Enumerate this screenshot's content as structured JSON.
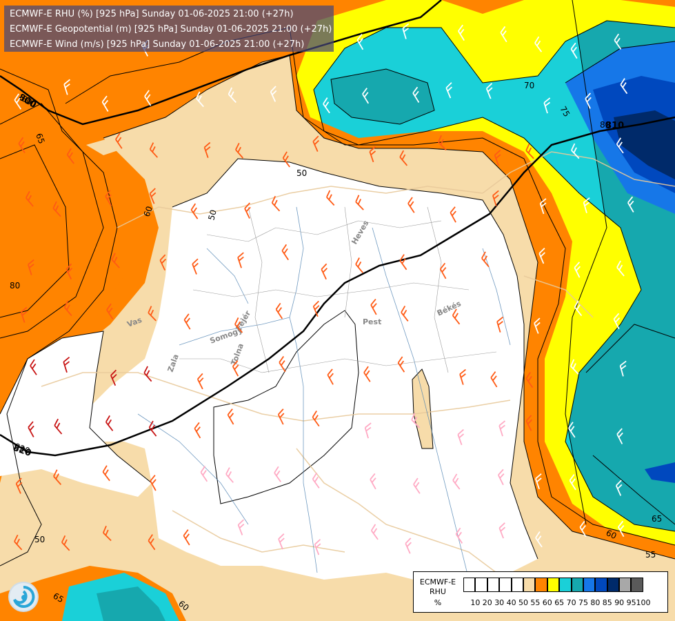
{
  "title_lines": [
    "ECMWF-E RHU (%) [925 hPa] Sunday 01-06-2025 21:00 (+27h)",
    "ECMWF-E Geopotential (m) [925 hPa] Sunday 01-06-2025 21:00 (+27h)",
    "ECMWF-E Wind (m/s) [925 hPa] Sunday 01-06-2025 21:00 (+27h)"
  ],
  "legend": {
    "title_line1": "ECMWF-E",
    "title_line2": "RHU",
    "unit": "%",
    "ticks": [
      "10",
      "20",
      "30",
      "40",
      "50",
      "55",
      "60",
      "65",
      "70",
      "75",
      "80",
      "85",
      "90",
      "95",
      "100"
    ],
    "colors": [
      "#ffffff",
      "#ffffff",
      "#ffffff",
      "#ffffff",
      "#ffffff",
      "#f7dcaa",
      "#ff8400",
      "#ffff00",
      "#1ad0d8",
      "#16a8ae",
      "#1677e8",
      "#0048be",
      "#002a6a",
      "#a8a8a8",
      "#5a5a5a"
    ]
  },
  "contour_labels": [
    "800",
    "820",
    "65",
    "60",
    "50",
    "70",
    "75",
    "80",
    "80",
    "50",
    "55",
    "60",
    "65",
    "50",
    "60",
    "65"
  ],
  "geopotential_labels": [
    "800",
    "810",
    "820"
  ],
  "regions": [
    "Heves",
    "Pest",
    "Békés",
    "Fejér",
    "Somogy",
    "Tolna",
    "Zala",
    "Vas"
  ],
  "wind_barb_count": 150
}
